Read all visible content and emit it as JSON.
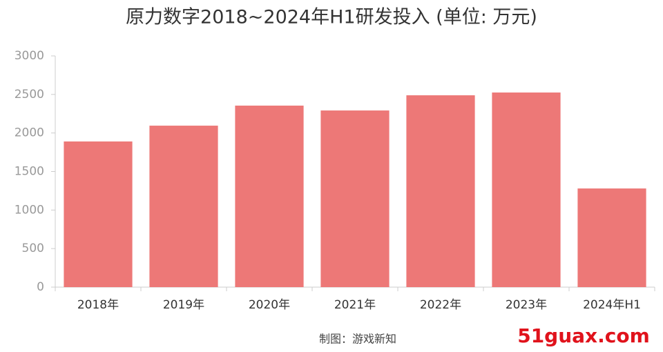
{
  "chart_data": {
    "type": "bar",
    "title": "原力数字2018~2024年H1研发投入 (单位: 万元)",
    "categories": [
      "2018年",
      "2019年",
      "2020年",
      "2021年",
      "2022年",
      "2023年",
      "2024年H1"
    ],
    "values": [
      1890,
      2095,
      2355,
      2292,
      2489,
      2525,
      1280
    ],
    "color": "#ed7877",
    "ylim": [
      0,
      3000
    ],
    "yticks": [
      0,
      500,
      1000,
      1500,
      2000,
      2500,
      3000
    ],
    "grid": false,
    "source": "制图：游戏新知",
    "watermark": "51guax.com"
  }
}
